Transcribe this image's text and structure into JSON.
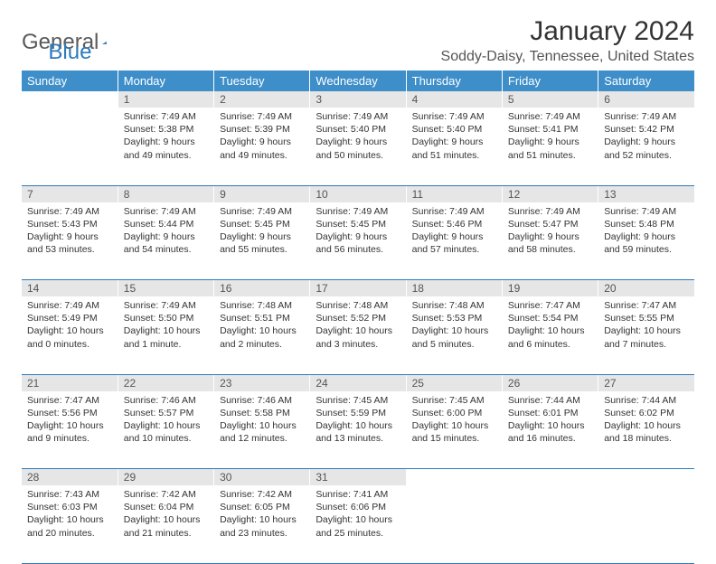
{
  "logo": {
    "general": "General",
    "blue": "Blue"
  },
  "title": "January 2024",
  "location": "Soddy-Daisy, Tennessee, United States",
  "colors": {
    "header_bg": "#3d8ec9",
    "header_text": "#ffffff",
    "daynum_bg": "#e6e6e6",
    "rule": "#2b7bbd",
    "logo_gray": "#5a5a5a",
    "logo_blue": "#2b7bbd"
  },
  "day_headers": [
    "Sunday",
    "Monday",
    "Tuesday",
    "Wednesday",
    "Thursday",
    "Friday",
    "Saturday"
  ],
  "weeks": [
    {
      "nums": [
        "",
        "1",
        "2",
        "3",
        "4",
        "5",
        "6"
      ],
      "cells": [
        null,
        {
          "sunrise": "Sunrise: 7:49 AM",
          "sunset": "Sunset: 5:38 PM",
          "daylight": "Daylight: 9 hours and 49 minutes."
        },
        {
          "sunrise": "Sunrise: 7:49 AM",
          "sunset": "Sunset: 5:39 PM",
          "daylight": "Daylight: 9 hours and 49 minutes."
        },
        {
          "sunrise": "Sunrise: 7:49 AM",
          "sunset": "Sunset: 5:40 PM",
          "daylight": "Daylight: 9 hours and 50 minutes."
        },
        {
          "sunrise": "Sunrise: 7:49 AM",
          "sunset": "Sunset: 5:40 PM",
          "daylight": "Daylight: 9 hours and 51 minutes."
        },
        {
          "sunrise": "Sunrise: 7:49 AM",
          "sunset": "Sunset: 5:41 PM",
          "daylight": "Daylight: 9 hours and 51 minutes."
        },
        {
          "sunrise": "Sunrise: 7:49 AM",
          "sunset": "Sunset: 5:42 PM",
          "daylight": "Daylight: 9 hours and 52 minutes."
        }
      ]
    },
    {
      "nums": [
        "7",
        "8",
        "9",
        "10",
        "11",
        "12",
        "13"
      ],
      "cells": [
        {
          "sunrise": "Sunrise: 7:49 AM",
          "sunset": "Sunset: 5:43 PM",
          "daylight": "Daylight: 9 hours and 53 minutes."
        },
        {
          "sunrise": "Sunrise: 7:49 AM",
          "sunset": "Sunset: 5:44 PM",
          "daylight": "Daylight: 9 hours and 54 minutes."
        },
        {
          "sunrise": "Sunrise: 7:49 AM",
          "sunset": "Sunset: 5:45 PM",
          "daylight": "Daylight: 9 hours and 55 minutes."
        },
        {
          "sunrise": "Sunrise: 7:49 AM",
          "sunset": "Sunset: 5:45 PM",
          "daylight": "Daylight: 9 hours and 56 minutes."
        },
        {
          "sunrise": "Sunrise: 7:49 AM",
          "sunset": "Sunset: 5:46 PM",
          "daylight": "Daylight: 9 hours and 57 minutes."
        },
        {
          "sunrise": "Sunrise: 7:49 AM",
          "sunset": "Sunset: 5:47 PM",
          "daylight": "Daylight: 9 hours and 58 minutes."
        },
        {
          "sunrise": "Sunrise: 7:49 AM",
          "sunset": "Sunset: 5:48 PM",
          "daylight": "Daylight: 9 hours and 59 minutes."
        }
      ]
    },
    {
      "nums": [
        "14",
        "15",
        "16",
        "17",
        "18",
        "19",
        "20"
      ],
      "cells": [
        {
          "sunrise": "Sunrise: 7:49 AM",
          "sunset": "Sunset: 5:49 PM",
          "daylight": "Daylight: 10 hours and 0 minutes."
        },
        {
          "sunrise": "Sunrise: 7:49 AM",
          "sunset": "Sunset: 5:50 PM",
          "daylight": "Daylight: 10 hours and 1 minute."
        },
        {
          "sunrise": "Sunrise: 7:48 AM",
          "sunset": "Sunset: 5:51 PM",
          "daylight": "Daylight: 10 hours and 2 minutes."
        },
        {
          "sunrise": "Sunrise: 7:48 AM",
          "sunset": "Sunset: 5:52 PM",
          "daylight": "Daylight: 10 hours and 3 minutes."
        },
        {
          "sunrise": "Sunrise: 7:48 AM",
          "sunset": "Sunset: 5:53 PM",
          "daylight": "Daylight: 10 hours and 5 minutes."
        },
        {
          "sunrise": "Sunrise: 7:47 AM",
          "sunset": "Sunset: 5:54 PM",
          "daylight": "Daylight: 10 hours and 6 minutes."
        },
        {
          "sunrise": "Sunrise: 7:47 AM",
          "sunset": "Sunset: 5:55 PM",
          "daylight": "Daylight: 10 hours and 7 minutes."
        }
      ]
    },
    {
      "nums": [
        "21",
        "22",
        "23",
        "24",
        "25",
        "26",
        "27"
      ],
      "cells": [
        {
          "sunrise": "Sunrise: 7:47 AM",
          "sunset": "Sunset: 5:56 PM",
          "daylight": "Daylight: 10 hours and 9 minutes."
        },
        {
          "sunrise": "Sunrise: 7:46 AM",
          "sunset": "Sunset: 5:57 PM",
          "daylight": "Daylight: 10 hours and 10 minutes."
        },
        {
          "sunrise": "Sunrise: 7:46 AM",
          "sunset": "Sunset: 5:58 PM",
          "daylight": "Daylight: 10 hours and 12 minutes."
        },
        {
          "sunrise": "Sunrise: 7:45 AM",
          "sunset": "Sunset: 5:59 PM",
          "daylight": "Daylight: 10 hours and 13 minutes."
        },
        {
          "sunrise": "Sunrise: 7:45 AM",
          "sunset": "Sunset: 6:00 PM",
          "daylight": "Daylight: 10 hours and 15 minutes."
        },
        {
          "sunrise": "Sunrise: 7:44 AM",
          "sunset": "Sunset: 6:01 PM",
          "daylight": "Daylight: 10 hours and 16 minutes."
        },
        {
          "sunrise": "Sunrise: 7:44 AM",
          "sunset": "Sunset: 6:02 PM",
          "daylight": "Daylight: 10 hours and 18 minutes."
        }
      ]
    },
    {
      "nums": [
        "28",
        "29",
        "30",
        "31",
        "",
        "",
        ""
      ],
      "cells": [
        {
          "sunrise": "Sunrise: 7:43 AM",
          "sunset": "Sunset: 6:03 PM",
          "daylight": "Daylight: 10 hours and 20 minutes."
        },
        {
          "sunrise": "Sunrise: 7:42 AM",
          "sunset": "Sunset: 6:04 PM",
          "daylight": "Daylight: 10 hours and 21 minutes."
        },
        {
          "sunrise": "Sunrise: 7:42 AM",
          "sunset": "Sunset: 6:05 PM",
          "daylight": "Daylight: 10 hours and 23 minutes."
        },
        {
          "sunrise": "Sunrise: 7:41 AM",
          "sunset": "Sunset: 6:06 PM",
          "daylight": "Daylight: 10 hours and 25 minutes."
        },
        null,
        null,
        null
      ]
    }
  ]
}
